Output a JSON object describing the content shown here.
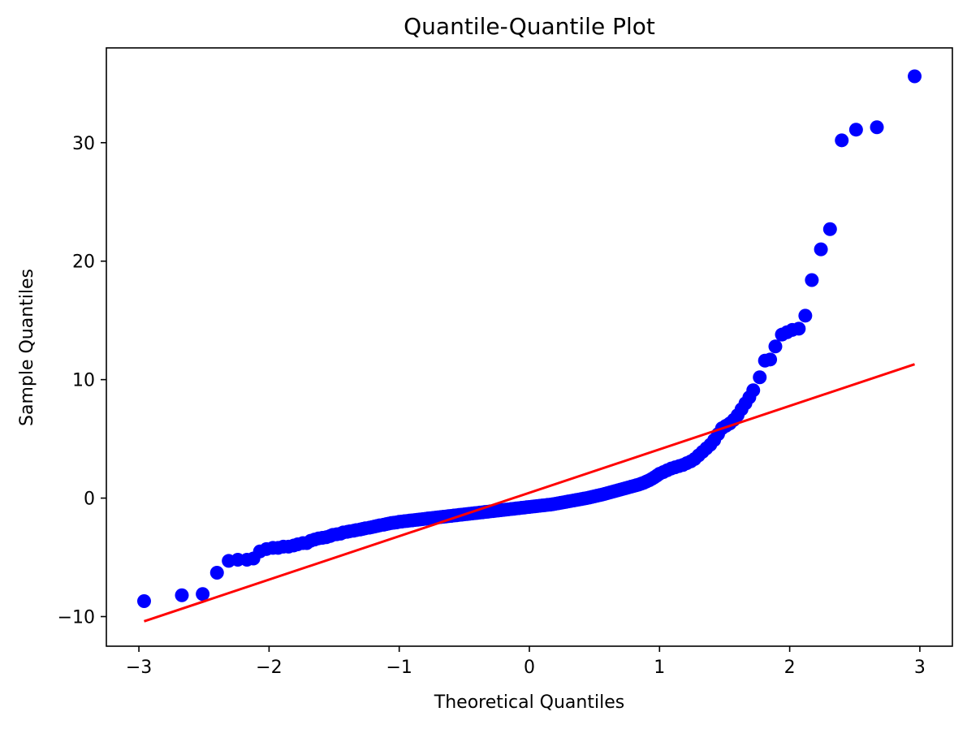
{
  "chart_data": {
    "type": "scatter",
    "title": "Quantile-Quantile Plot",
    "xlabel": "Theoretical Quantiles",
    "ylabel": "Sample Quantiles",
    "xlim": [
      -3.25,
      3.25
    ],
    "ylim": [
      -12.5,
      38
    ],
    "xticks": [
      -3,
      -2,
      -1,
      0,
      1,
      2,
      3
    ],
    "xtick_labels": [
      "−3",
      "−2",
      "−1",
      "0",
      "1",
      "2",
      "3"
    ],
    "yticks": [
      -10,
      0,
      10,
      20,
      30
    ],
    "ytick_labels": [
      "−10",
      "0",
      "10",
      "20",
      "30"
    ],
    "grid": false,
    "colors": {
      "points": "#0000ff",
      "line": "#ff0000",
      "axes": "#000000"
    },
    "series": [
      {
        "kind": "points",
        "points": [
          [
            -2.96,
            -8.7
          ],
          [
            -2.67,
            -8.2
          ],
          [
            -2.51,
            -8.1
          ],
          [
            -2.4,
            -6.3
          ],
          [
            -2.31,
            -5.3
          ],
          [
            -2.24,
            -5.2
          ],
          [
            -2.17,
            -5.2
          ],
          [
            -2.12,
            -5.1
          ],
          [
            -2.07,
            -4.5
          ],
          [
            -2.02,
            -4.3
          ],
          [
            -1.97,
            -4.2
          ],
          [
            -1.93,
            -4.2
          ],
          [
            -1.89,
            -4.1
          ],
          [
            -1.85,
            -4.1
          ],
          [
            -1.81,
            -4.0
          ],
          [
            -1.78,
            -3.9
          ],
          [
            -1.74,
            -3.8
          ],
          [
            -1.71,
            -3.8
          ],
          [
            -1.68,
            -3.6
          ],
          [
            -1.65,
            -3.5
          ],
          [
            -1.62,
            -3.4
          ],
          [
            -1.59,
            -3.35
          ],
          [
            -1.56,
            -3.3
          ],
          [
            -1.53,
            -3.2
          ],
          [
            -1.51,
            -3.1
          ],
          [
            -1.48,
            -3.05
          ],
          [
            -1.45,
            -3.0
          ],
          [
            -1.43,
            -2.9
          ],
          [
            -1.4,
            -2.85
          ],
          [
            -1.38,
            -2.8
          ],
          [
            -1.35,
            -2.75
          ],
          [
            -1.33,
            -2.7
          ],
          [
            -1.3,
            -2.65
          ],
          [
            -1.28,
            -2.6
          ],
          [
            -1.26,
            -2.55
          ],
          [
            -1.23,
            -2.5
          ],
          [
            -1.21,
            -2.45
          ],
          [
            -1.19,
            -2.4
          ],
          [
            -1.17,
            -2.35
          ],
          [
            -1.15,
            -2.3
          ],
          [
            -1.12,
            -2.25
          ],
          [
            -1.1,
            -2.2
          ],
          [
            -1.08,
            -2.15
          ],
          [
            -1.06,
            -2.1
          ],
          [
            -1.04,
            -2.08
          ],
          [
            -1.02,
            -2.05
          ],
          [
            -1.0,
            -2.0
          ],
          [
            -0.98,
            -1.98
          ],
          [
            -0.96,
            -1.95
          ],
          [
            -0.94,
            -1.93
          ],
          [
            -0.92,
            -1.9
          ],
          [
            -0.9,
            -1.88
          ],
          [
            -0.88,
            -1.85
          ],
          [
            -0.86,
            -1.83
          ],
          [
            -0.84,
            -1.8
          ],
          [
            -0.82,
            -1.78
          ],
          [
            -0.8,
            -1.75
          ],
          [
            -0.78,
            -1.72
          ],
          [
            -0.76,
            -1.7
          ],
          [
            -0.74,
            -1.67
          ],
          [
            -0.72,
            -1.65
          ],
          [
            -0.7,
            -1.62
          ],
          [
            -0.68,
            -1.6
          ],
          [
            -0.66,
            -1.57
          ],
          [
            -0.64,
            -1.55
          ],
          [
            -0.62,
            -1.52
          ],
          [
            -0.6,
            -1.5
          ],
          [
            -0.58,
            -1.47
          ],
          [
            -0.56,
            -1.45
          ],
          [
            -0.54,
            -1.42
          ],
          [
            -0.52,
            -1.4
          ],
          [
            -0.5,
            -1.37
          ],
          [
            -0.48,
            -1.35
          ],
          [
            -0.46,
            -1.32
          ],
          [
            -0.44,
            -1.3
          ],
          [
            -0.42,
            -1.27
          ],
          [
            -0.4,
            -1.25
          ],
          [
            -0.38,
            -1.22
          ],
          [
            -0.36,
            -1.2
          ],
          [
            -0.34,
            -1.17
          ],
          [
            -0.32,
            -1.15
          ],
          [
            -0.3,
            -1.12
          ],
          [
            -0.28,
            -1.1
          ],
          [
            -0.26,
            -1.07
          ],
          [
            -0.24,
            -1.05
          ],
          [
            -0.22,
            -1.02
          ],
          [
            -0.2,
            -1.0
          ],
          [
            -0.18,
            -0.97
          ],
          [
            -0.16,
            -0.95
          ],
          [
            -0.14,
            -0.92
          ],
          [
            -0.12,
            -0.9
          ],
          [
            -0.1,
            -0.87
          ],
          [
            -0.08,
            -0.85
          ],
          [
            -0.06,
            -0.82
          ],
          [
            -0.04,
            -0.8
          ],
          [
            -0.02,
            -0.77
          ],
          [
            0.0,
            -0.75
          ],
          [
            0.02,
            -0.72
          ],
          [
            0.04,
            -0.7
          ],
          [
            0.06,
            -0.67
          ],
          [
            0.08,
            -0.65
          ],
          [
            0.1,
            -0.62
          ],
          [
            0.12,
            -0.6
          ],
          [
            0.14,
            -0.57
          ],
          [
            0.16,
            -0.55
          ],
          [
            0.18,
            -0.52
          ],
          [
            0.2,
            -0.48
          ],
          [
            0.22,
            -0.44
          ],
          [
            0.24,
            -0.4
          ],
          [
            0.26,
            -0.36
          ],
          [
            0.28,
            -0.32
          ],
          [
            0.3,
            -0.28
          ],
          [
            0.32,
            -0.24
          ],
          [
            0.34,
            -0.2
          ],
          [
            0.36,
            -0.16
          ],
          [
            0.38,
            -0.12
          ],
          [
            0.4,
            -0.08
          ],
          [
            0.42,
            -0.04
          ],
          [
            0.44,
            0.0
          ],
          [
            0.46,
            0.05
          ],
          [
            0.48,
            0.1
          ],
          [
            0.5,
            0.15
          ],
          [
            0.52,
            0.2
          ],
          [
            0.54,
            0.25
          ],
          [
            0.56,
            0.3
          ],
          [
            0.58,
            0.36
          ],
          [
            0.6,
            0.42
          ],
          [
            0.62,
            0.48
          ],
          [
            0.64,
            0.54
          ],
          [
            0.66,
            0.6
          ],
          [
            0.68,
            0.66
          ],
          [
            0.7,
            0.72
          ],
          [
            0.72,
            0.78
          ],
          [
            0.74,
            0.84
          ],
          [
            0.76,
            0.9
          ],
          [
            0.78,
            0.96
          ],
          [
            0.8,
            1.02
          ],
          [
            0.82,
            1.08
          ],
          [
            0.84,
            1.14
          ],
          [
            0.86,
            1.22
          ],
          [
            0.88,
            1.3
          ],
          [
            0.9,
            1.4
          ],
          [
            0.92,
            1.5
          ],
          [
            0.94,
            1.62
          ],
          [
            0.96,
            1.75
          ],
          [
            0.98,
            1.9
          ],
          [
            1.0,
            2.05
          ],
          [
            1.03,
            2.2
          ],
          [
            1.06,
            2.35
          ],
          [
            1.09,
            2.5
          ],
          [
            1.12,
            2.6
          ],
          [
            1.15,
            2.7
          ],
          [
            1.18,
            2.8
          ],
          [
            1.21,
            2.95
          ],
          [
            1.24,
            3.1
          ],
          [
            1.27,
            3.3
          ],
          [
            1.3,
            3.6
          ],
          [
            1.33,
            3.9
          ],
          [
            1.36,
            4.2
          ],
          [
            1.39,
            4.5
          ],
          [
            1.42,
            4.9
          ],
          [
            1.45,
            5.4
          ],
          [
            1.48,
            5.9
          ],
          [
            1.51,
            6.1
          ],
          [
            1.54,
            6.3
          ],
          [
            1.57,
            6.6
          ],
          [
            1.6,
            7.0
          ],
          [
            1.63,
            7.5
          ],
          [
            1.66,
            8.0
          ],
          [
            1.69,
            8.5
          ],
          [
            1.72,
            9.1
          ],
          [
            1.77,
            10.2
          ],
          [
            1.81,
            11.6
          ],
          [
            1.85,
            11.7
          ],
          [
            1.89,
            12.8
          ],
          [
            1.94,
            13.8
          ],
          [
            1.98,
            14.0
          ],
          [
            2.02,
            14.2
          ],
          [
            2.07,
            14.3
          ],
          [
            2.12,
            15.4
          ],
          [
            2.17,
            18.4
          ],
          [
            2.24,
            21.0
          ],
          [
            2.31,
            22.7
          ],
          [
            2.4,
            30.2
          ],
          [
            2.51,
            31.1
          ],
          [
            2.67,
            31.3
          ],
          [
            2.96,
            35.6
          ]
        ]
      },
      {
        "kind": "line",
        "points": [
          [
            -2.96,
            -10.4
          ],
          [
            2.96,
            11.3
          ]
        ]
      }
    ]
  }
}
